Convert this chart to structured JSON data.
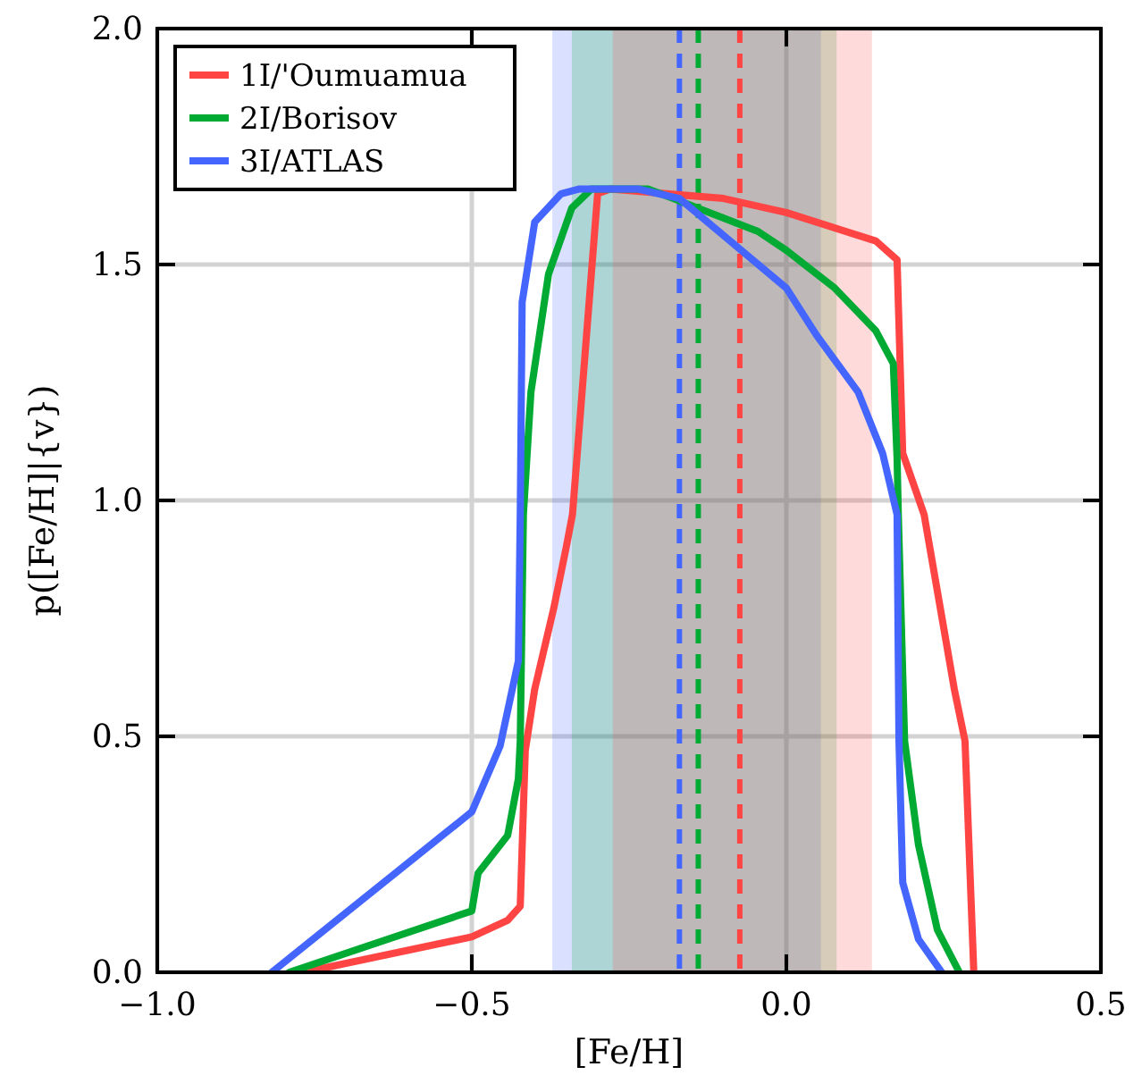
{
  "chart_data": {
    "type": "line",
    "xlabel": "[Fe/H]",
    "ylabel": "p([Fe/H]|{v})",
    "xlim": [
      -1.0,
      0.5
    ],
    "ylim": [
      0,
      2.0
    ],
    "xticks": [
      {
        "value": -1.0,
        "label": "−1.0"
      },
      {
        "value": -0.5,
        "label": "−0.5"
      },
      {
        "value": 0,
        "label": "0.0"
      },
      {
        "value": 0.5,
        "label": "0.5"
      }
    ],
    "yticks": [
      {
        "value": 0,
        "label": "0.0"
      },
      {
        "value": 0.5,
        "label": "0.5"
      },
      {
        "value": 1.0,
        "label": "1.0"
      },
      {
        "value": 1.5,
        "label": "1.5"
      },
      {
        "value": 2.0,
        "label": "2.0"
      }
    ],
    "grid": true,
    "legend": "top left",
    "line_style": "solid",
    "series": [
      {
        "name": "1I/'Oumuamua",
        "color": "#ff4444",
        "x": [
          -0.767,
          -0.5,
          -0.443,
          -0.423,
          -0.415,
          -0.4,
          -0.37,
          -0.35,
          -0.34,
          -0.3,
          -0.28,
          -0.1,
          0,
          0.142,
          0.176,
          0.185,
          0.219,
          0.267,
          0.284,
          0.298
        ],
        "values": [
          0,
          0.075,
          0.11,
          0.14,
          0.47,
          0.6,
          0.77,
          0.9,
          0.97,
          1.65,
          1.66,
          1.64,
          1.61,
          1.55,
          1.51,
          1.1,
          0.97,
          0.6,
          0.49,
          0
        ]
      },
      {
        "name": "2I/Borisov",
        "color": "#00aa33",
        "x": [
          -0.79,
          -0.5,
          -0.49,
          -0.443,
          -0.426,
          -0.423,
          -0.418,
          -0.406,
          -0.378,
          -0.341,
          -0.31,
          -0.22,
          -0.18,
          -0.045,
          0,
          0.077,
          0.142,
          0.17,
          0.176,
          0.178,
          0.188,
          0.21,
          0.24,
          0.275
        ],
        "values": [
          0,
          0.13,
          0.21,
          0.29,
          0.41,
          0.49,
          0.97,
          1.23,
          1.48,
          1.62,
          1.66,
          1.66,
          1.64,
          1.57,
          1.53,
          1.45,
          1.36,
          1.29,
          1.09,
          0.97,
          0.49,
          0.27,
          0.09,
          0
        ]
      },
      {
        "name": "3I/ATLAS",
        "color": "#4466ff",
        "x": [
          -0.818,
          -0.5,
          -0.455,
          -0.426,
          -0.423,
          -0.42,
          -0.4,
          -0.358,
          -0.33,
          -0.236,
          -0.17,
          0,
          0.048,
          0.114,
          0.153,
          0.176,
          0.179,
          0.185,
          0.21,
          0.247
        ],
        "values": [
          0,
          0.34,
          0.48,
          0.66,
          0.97,
          1.42,
          1.59,
          1.65,
          1.66,
          1.66,
          1.64,
          1.45,
          1.35,
          1.23,
          1.1,
          0.97,
          0.49,
          0.19,
          0.07,
          0
        ]
      }
    ],
    "bands": [
      {
        "axis": "x",
        "from": -0.372,
        "to": 0.055,
        "color": "#4466ff"
      },
      {
        "axis": "x",
        "from": -0.341,
        "to": 0.08,
        "color": "#00aa33"
      },
      {
        "axis": "x",
        "from": -0.276,
        "to": 0.136,
        "color": "#ff4444"
      }
    ],
    "ref_lines": [
      {
        "axis": "x",
        "value": -0.17,
        "color": "#4466ff",
        "line_style": "dashed"
      },
      {
        "axis": "x",
        "value": -0.14,
        "color": "#00aa33",
        "line_style": "dashed"
      },
      {
        "axis": "x",
        "value": -0.074,
        "color": "#ff4444",
        "line_style": "dashed"
      }
    ]
  }
}
